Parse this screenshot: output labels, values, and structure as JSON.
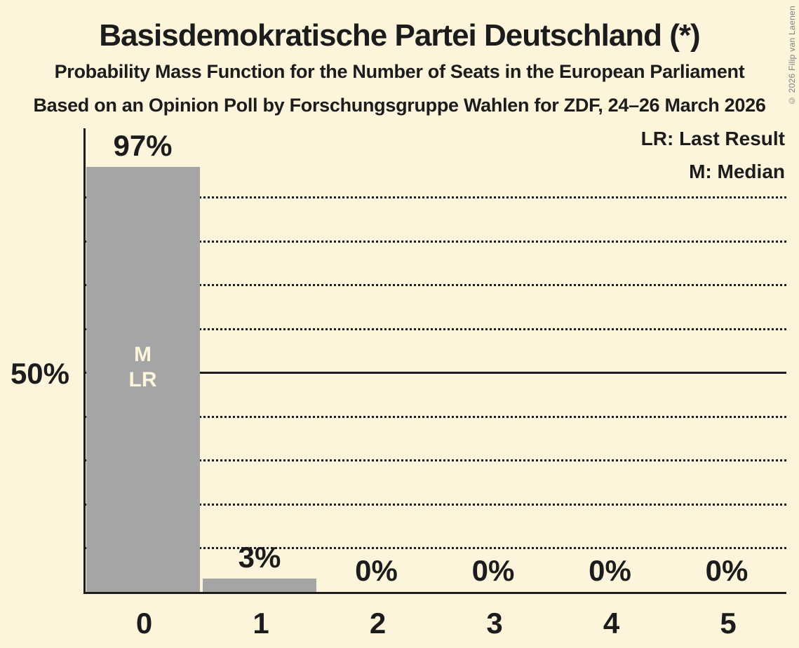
{
  "page": {
    "background_color": "#FCF5DC",
    "text_color": "#1C1C1C"
  },
  "chart_data": {
    "type": "bar",
    "title": "Basisdemokratische Partei Deutschland (*)",
    "subtitle": "Probability Mass Function for the Number of Seats in the European Parliament",
    "source_line": "Based on an Opinion Poll by Forschungsgruppe Wahlen for ZDF, 24–26 March 2026",
    "categories": [
      "0",
      "1",
      "2",
      "3",
      "4",
      "5"
    ],
    "values": [
      97,
      3,
      0,
      0,
      0,
      0
    ],
    "bar_labels": [
      "97%",
      "3%",
      "0%",
      "0%",
      "0%",
      "0%"
    ],
    "xlabel": "",
    "ylabel": "",
    "ylim": [
      0,
      100
    ],
    "ytick_label": "50%",
    "ytick_value": 50,
    "dotted_gridlines_pct": [
      10,
      20,
      30,
      40,
      60,
      70,
      80,
      90
    ],
    "solid_line_pct": 50,
    "grid": "horizontal-dotted",
    "legend_position": "top-right",
    "legend": {
      "entries": [
        "LR: Last Result",
        "M: Median"
      ]
    },
    "median_bar_index": 0,
    "median_bar_lines": [
      "M",
      "LR"
    ],
    "bar_color": "#A5A5A5",
    "bar_inner_label_color": "#FCF5DC",
    "copyright": "© 2026 Filip van Laenen"
  }
}
